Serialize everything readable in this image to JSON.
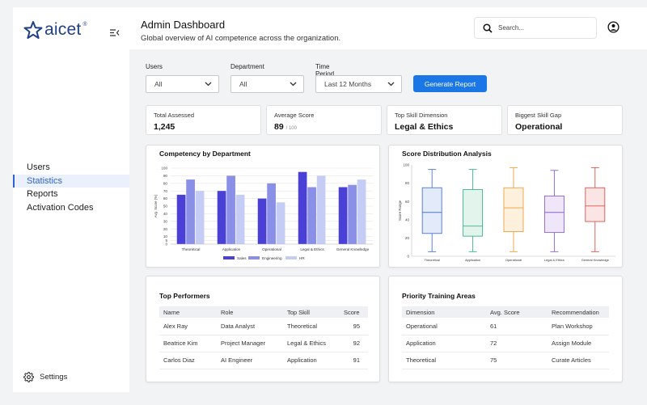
{
  "brand": {
    "logo_text": "aicet",
    "logo_mark": "®"
  },
  "sidebar": {
    "items": [
      {
        "label": "Users",
        "active": false
      },
      {
        "label": "Statistics",
        "active": true
      },
      {
        "label": "Reports",
        "active": false
      },
      {
        "label": "Activation Codes",
        "active": false
      }
    ],
    "settings_label": "Settings"
  },
  "header": {
    "title": "Admin Dashboard",
    "subtitle": "Global overview of AI competence across the organization.",
    "search_placeholder": "Search..."
  },
  "filters": {
    "users": {
      "label": "Users",
      "value": "All"
    },
    "department": {
      "label": "Department",
      "value": "All"
    },
    "time_period": {
      "label": "Time Period",
      "value": "Last 12 Months"
    },
    "generate_label": "Generate Report"
  },
  "kpis": [
    {
      "label": "Total Assessed",
      "value": "1,245",
      "unit": ""
    },
    {
      "label": "Average Score",
      "value": "89",
      "unit": "/ 100"
    },
    {
      "label": "Top Skill Dimension",
      "value": "Legal & Ethics",
      "unit": ""
    },
    {
      "label": "Biggest Skill Gap",
      "value": "Operational",
      "unit": ""
    }
  ],
  "colors": {
    "accent": "#1c77e6",
    "sales": "#4a3fd6",
    "engineering": "#8a8fe8",
    "hr": "#c5cdf5"
  },
  "chart_data": [
    {
      "type": "bar",
      "title": "Competency by Department",
      "ylabel": "Avg. Score (%)",
      "ylim": [
        0,
        100
      ],
      "yticks": [
        0,
        5,
        10,
        20,
        30,
        40,
        50,
        60,
        70,
        80,
        90,
        100
      ],
      "categories": [
        "Theoretical",
        "Application",
        "Operational",
        "Legal & Ethics",
        "General Knowledge"
      ],
      "series": [
        {
          "name": "Sales",
          "color": "#4a3fd6",
          "values": [
            65,
            70,
            60,
            95,
            75
          ]
        },
        {
          "name": "Engineering",
          "color": "#8a8fe8",
          "values": [
            85,
            90,
            80,
            75,
            78
          ]
        },
        {
          "name": "HR",
          "color": "#c5cdf5",
          "values": [
            70,
            65,
            55,
            90,
            85
          ]
        }
      ],
      "grid": true,
      "legend": "bottom"
    },
    {
      "type": "box",
      "title": "Score Distribution Analysis",
      "ylabel": "Score Range",
      "ylim": [
        0,
        100
      ],
      "yticks": [
        0,
        20,
        40,
        60,
        80,
        100
      ],
      "categories": [
        "Theoretical",
        "Application",
        "Operational",
        "Legal & Ethics",
        "General Knowledge"
      ],
      "boxes": [
        {
          "min": 5,
          "q1": 25,
          "median": 48,
          "q3": 75,
          "max": 95,
          "color": "#4a74d4",
          "fill": "#e3ebfb"
        },
        {
          "min": 5,
          "q1": 22,
          "median": 33,
          "q3": 73,
          "max": 95,
          "color": "#3cb38c",
          "fill": "#e2f4ec"
        },
        {
          "min": 5,
          "q1": 27,
          "median": 53,
          "q3": 75,
          "max": 97,
          "color": "#f0a040",
          "fill": "#fdf0dd"
        },
        {
          "min": 5,
          "q1": 26,
          "median": 48,
          "q3": 66,
          "max": 94,
          "color": "#8e5fd2",
          "fill": "#efe6fa"
        },
        {
          "min": 5,
          "q1": 38,
          "median": 55,
          "q3": 75,
          "max": 97,
          "color": "#d9534f",
          "fill": "#fbe5e4"
        }
      ]
    }
  ],
  "top_performers": {
    "title": "Top Performers",
    "columns": [
      "Name",
      "Role",
      "Top Skill",
      "Score"
    ],
    "rows": [
      {
        "name": "Alex Ray",
        "role": "Data Analyst",
        "skill": "Theoretical",
        "score": "95"
      },
      {
        "name": "Beatrice Kim",
        "role": "Project Manager",
        "skill": "Legal & Ethics",
        "score": "92"
      },
      {
        "name": "Carlos Diaz",
        "role": "AI Engineer",
        "skill": "Application",
        "score": "91"
      }
    ]
  },
  "priority_training": {
    "title": "Priority Training Areas",
    "columns": [
      "Dimension",
      "Avg. Score",
      "Recommendation"
    ],
    "rows": [
      {
        "dimension": "Operational",
        "score": "61",
        "recommendation": "Plan Workshop"
      },
      {
        "dimension": "Application",
        "score": "72",
        "recommendation": "Assign Module"
      },
      {
        "dimension": "Theoretical",
        "score": "75",
        "recommendation": "Curate Articles"
      }
    ]
  }
}
